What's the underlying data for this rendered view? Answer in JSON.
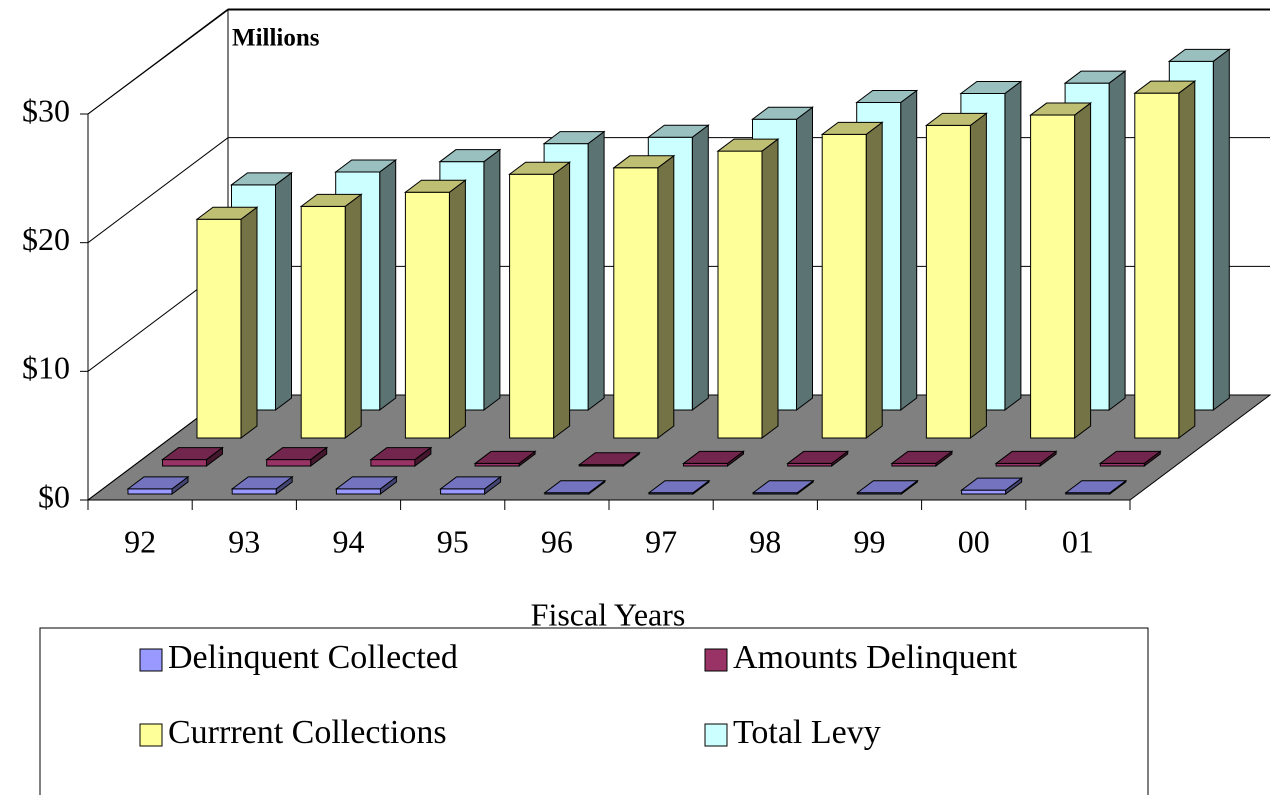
{
  "chart_data": {
    "type": "bar3d",
    "annotation": "Millions",
    "xlabel": "Fiscal Years",
    "categories": [
      "92",
      "93",
      "94",
      "95",
      "96",
      "97",
      "98",
      "99",
      "00",
      "01"
    ],
    "series": [
      {
        "name": "Delinquent Collected",
        "color": "#9999ff",
        "values": [
          0.4,
          0.4,
          0.4,
          0.4,
          0.1,
          0.1,
          0.1,
          0.1,
          0.3,
          0.1
        ]
      },
      {
        "name": "Amounts Delinquent",
        "color": "#993366",
        "values": [
          0.5,
          0.5,
          0.5,
          0.2,
          0.1,
          0.2,
          0.2,
          0.2,
          0.2,
          0.2
        ]
      },
      {
        "name": "Currrent Collections",
        "color": "#ffff99",
        "values": [
          17.0,
          18.0,
          19.1,
          20.5,
          21.0,
          22.3,
          23.6,
          24.3,
          25.1,
          26.8
        ]
      },
      {
        "name": "Total Levy",
        "color": "#ccffff",
        "values": [
          17.5,
          18.5,
          19.3,
          20.7,
          21.2,
          22.6,
          23.9,
          24.6,
          25.4,
          27.1
        ]
      }
    ],
    "ylim": [
      0,
      30
    ],
    "yticks": [
      {
        "value": 0,
        "label": "$0"
      },
      {
        "value": 10,
        "label": "$10"
      },
      {
        "value": 20,
        "label": "$20"
      },
      {
        "value": 30,
        "label": "$30"
      }
    ],
    "grid": true
  }
}
